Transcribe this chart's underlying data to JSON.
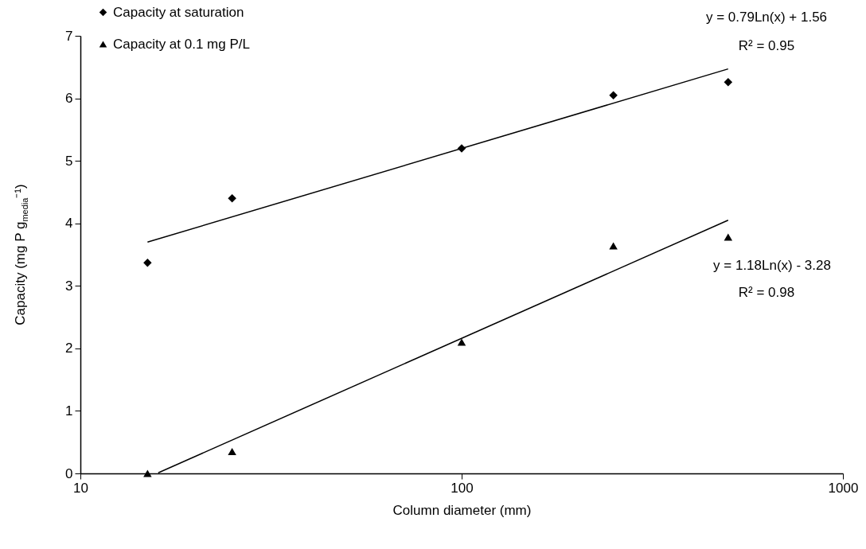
{
  "chart_data": {
    "type": "scatter",
    "xlabel": "Column diameter (mm)",
    "ylabel": "Capacity (mg P g$_{media}$⁻¹)",
    "log": "x",
    "xlim": [
      10,
      1000
    ],
    "xticks": [
      10,
      100,
      1000
    ],
    "ylim": [
      0,
      7
    ],
    "yticks": [
      0,
      1,
      2,
      3,
      4,
      5,
      6,
      7
    ],
    "grid": false,
    "legend": "top left",
    "series": [
      {
        "name": "Capacity at saturation",
        "color": "#000000",
        "marker": "diamond",
        "x": [
          15,
          25,
          100,
          250,
          500
        ],
        "values": [
          3.37,
          4.4,
          5.2,
          6.05,
          6.26
        ]
      },
      {
        "name": "Capacity at 0.1 mg P/L",
        "color": "#000000",
        "marker": "triangle",
        "x": [
          15,
          25,
          100,
          250,
          500
        ],
        "values": [
          0,
          0.35,
          2.1,
          3.64,
          3.78
        ]
      },
      {
        "type": "line",
        "color": "#000000",
        "x": [
          15,
          500
        ],
        "values": [
          3.7,
          6.47
        ]
      },
      {
        "type": "line",
        "color": "#000000",
        "x": [
          16,
          500
        ],
        "values": [
          0.01,
          4.05
        ]
      }
    ],
    "annotations": [
      "y = 0.79Ln(x) + 1.56",
      "R² = 0.95",
      "y = 1.18Ln(x) - 3.28",
      "R² = 0.98"
    ]
  }
}
